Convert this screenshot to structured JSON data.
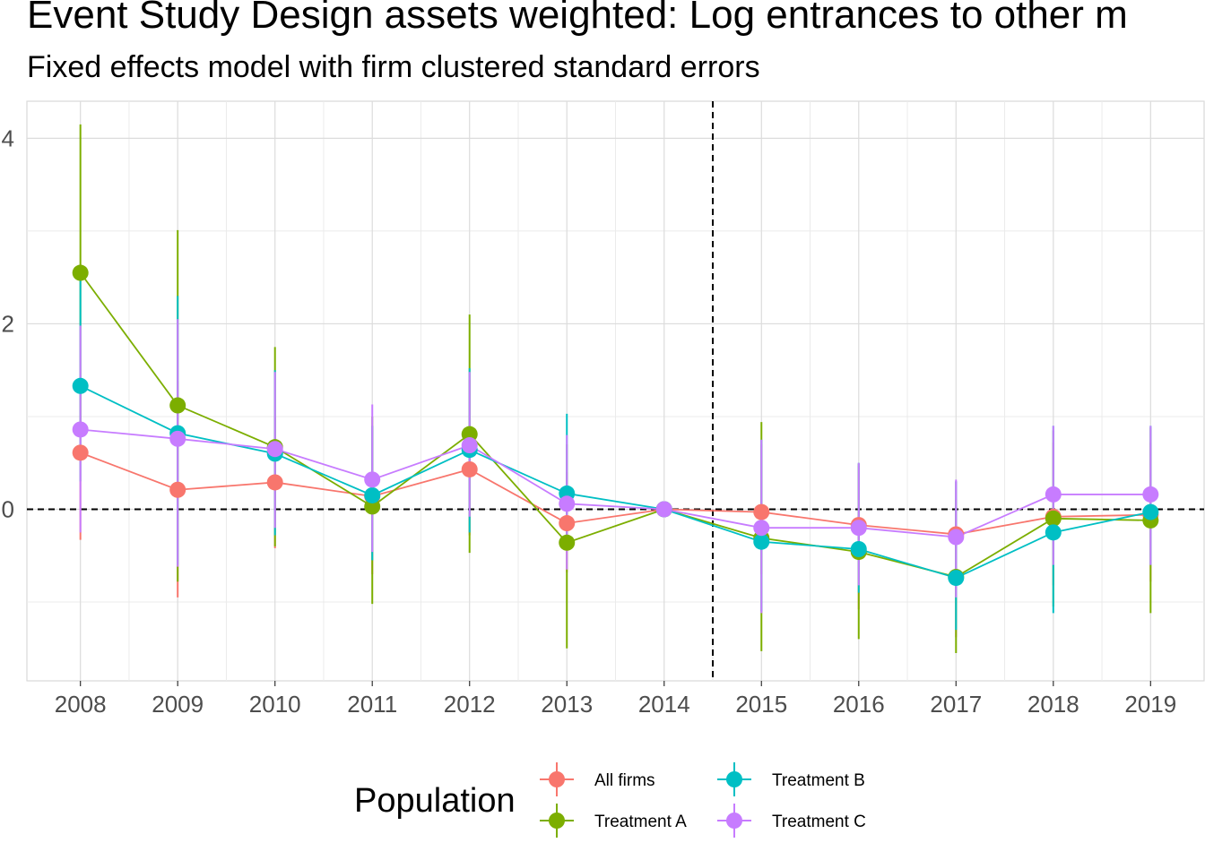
{
  "chart_data": {
    "type": "line",
    "title": "Event Study Design assets weighted: Log entrances to other m",
    "subtitle": "Fixed effects model with firm clustered standard errors",
    "xlabel": "",
    "ylabel": "",
    "x": [
      2008,
      2009,
      2010,
      2011,
      2012,
      2013,
      2014,
      2015,
      2016,
      2017,
      2018,
      2019
    ],
    "x_tick_labels": [
      "2008",
      "2009",
      "2010",
      "2011",
      "2012",
      "2013",
      "2014",
      "2015",
      "2016",
      "2017",
      "2018",
      "2019"
    ],
    "y_tick_labels": [
      "0",
      "2",
      "4"
    ],
    "y_ticks": [
      0,
      2,
      4
    ],
    "xlim": [
      2007.45,
      2019.55
    ],
    "ylim": [
      -1.85,
      4.4
    ],
    "grid": true,
    "reference_lines": {
      "horizontal_y": 0,
      "vertical_x": 2014.5,
      "style": "dashed"
    },
    "legend": {
      "title": "Population",
      "position": "bottom"
    },
    "series": [
      {
        "name": "All firms",
        "color": "#F8766D",
        "values": [
          0.61,
          0.21,
          0.29,
          0.14,
          0.43,
          -0.15,
          0.0,
          -0.03,
          -0.17,
          -0.27,
          -0.08,
          -0.06
        ],
        "lower": [
          -0.33,
          -0.95,
          -0.42,
          -0.7,
          -0.28,
          -0.68,
          0.0,
          -0.7,
          -1.08,
          -1.38,
          -0.82,
          -0.78
        ],
        "upper": [
          1.41,
          1.38,
          0.99,
          0.9,
          1.4,
          0.4,
          0.0,
          0.7,
          0.47,
          0.3,
          0.72,
          0.72
        ]
      },
      {
        "name": "Treatment A",
        "color": "#7CAE00",
        "values": [
          2.55,
          1.12,
          0.67,
          0.03,
          0.81,
          -0.36,
          0.0,
          -0.31,
          -0.46,
          -0.73,
          -0.1,
          -0.12
        ],
        "lower": [
          0.94,
          -0.78,
          -0.4,
          -1.02,
          -0.47,
          -1.5,
          0.0,
          -1.53,
          -1.4,
          -1.55,
          -1.05,
          -1.12
        ],
        "upper": [
          4.15,
          3.01,
          1.75,
          1.0,
          2.1,
          0.7,
          0.0,
          0.94,
          0.49,
          0.1,
          0.85,
          0.88
        ]
      },
      {
        "name": "Treatment B",
        "color": "#00BFC4",
        "values": [
          1.33,
          0.82,
          0.6,
          0.15,
          0.64,
          0.17,
          0.0,
          -0.35,
          -0.43,
          -0.74,
          -0.25,
          -0.03
        ],
        "lower": [
          0.3,
          -0.6,
          -0.28,
          -0.55,
          -0.25,
          -0.35,
          0.0,
          -1.1,
          -0.9,
          -1.3,
          -1.12,
          -0.6
        ],
        "upper": [
          2.5,
          2.3,
          1.5,
          0.9,
          1.52,
          1.03,
          0.0,
          0.75,
          0.5,
          0.3,
          0.9,
          0.9
        ]
      },
      {
        "name": "Treatment C",
        "color": "#C77CFF",
        "values": [
          0.86,
          0.76,
          0.65,
          0.32,
          0.69,
          0.06,
          0.0,
          -0.2,
          -0.2,
          -0.3,
          0.16,
          0.16
        ],
        "lower": [
          -0.25,
          -0.62,
          -0.2,
          -0.46,
          -0.08,
          -0.65,
          0.0,
          -1.12,
          -0.82,
          -0.95,
          -0.6,
          -0.6
        ],
        "upper": [
          1.98,
          2.05,
          1.48,
          1.13,
          1.48,
          0.8,
          0.0,
          0.75,
          0.5,
          0.32,
          0.9,
          0.9
        ]
      }
    ]
  }
}
